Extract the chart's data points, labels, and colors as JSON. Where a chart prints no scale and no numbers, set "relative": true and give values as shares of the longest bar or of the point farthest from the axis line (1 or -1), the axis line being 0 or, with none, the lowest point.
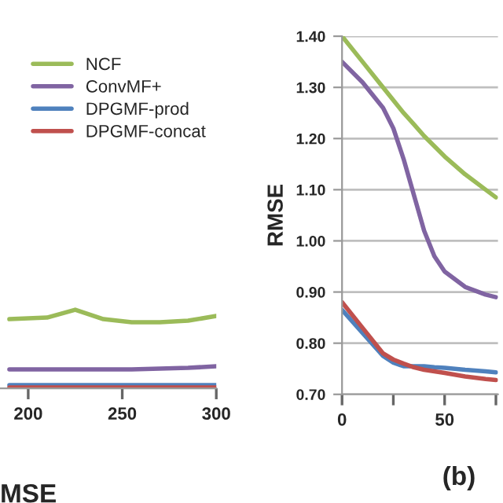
{
  "chart_data": [
    {
      "type": "line",
      "relative": true,
      "x": [
        190,
        210,
        225,
        240,
        255,
        270,
        285,
        300
      ],
      "xlim": [
        185,
        300
      ],
      "xticks": [
        200,
        250,
        300
      ],
      "tick_labels": "x",
      "legend": "top right",
      "annotations": [
        "MSE"
      ],
      "series": [
        {
          "name": "NCF",
          "color": "#9bbb59",
          "values": [
            0.88,
            0.9,
            1,
            0.88,
            0.84,
            0.84,
            0.86,
            0.92
          ]
        },
        {
          "name": "ConvMF+",
          "color": "#8064a2",
          "values": [
            0.24,
            0.24,
            0.24,
            0.24,
            0.24,
            0.25,
            0.26,
            0.28
          ]
        },
        {
          "name": "DPGMF-prod",
          "color": "#4f81bd",
          "values": [
            0.04,
            0.04,
            0.04,
            0.04,
            0.04,
            0.04,
            0.04,
            0.04
          ]
        },
        {
          "name": "DPGMF-concat",
          "color": "#c0504d",
          "values": [
            0.01,
            0.01,
            0.01,
            0.01,
            0.01,
            0.01,
            0.01,
            0.01
          ]
        }
      ]
    },
    {
      "type": "line",
      "x": [
        0,
        10,
        20,
        25,
        30,
        35,
        40,
        45,
        50,
        60,
        70,
        75
      ],
      "xlim": [
        0,
        76
      ],
      "xticks": [
        0,
        {
          "value": 25,
          "label": null
        },
        50,
        {
          "value": 75,
          "label": null
        }
      ],
      "ylim": [
        0.7,
        1.4
      ],
      "yticks": [
        {
          "value": 0.7,
          "label": "0.70"
        },
        {
          "value": 0.8,
          "label": "0.80"
        },
        {
          "value": 0.9,
          "label": "0.90"
        },
        {
          "value": 1.0,
          "label": "1.00"
        },
        {
          "value": 1.1,
          "label": "1.10"
        },
        {
          "value": 1.2,
          "label": "1.20"
        },
        {
          "value": 1.3,
          "label": "1.30"
        },
        {
          "value": 1.4,
          "label": "1.40"
        }
      ],
      "ylabel": "RMSE",
      "grid": "y",
      "annotations": [
        "(b)"
      ],
      "series": [
        {
          "color": "#9bbb59",
          "values": [
            1.4,
            1.35,
            1.3,
            1.275,
            1.25,
            1.228,
            1.205,
            1.185,
            1.165,
            1.13,
            1.1,
            1.085
          ]
        },
        {
          "color": "#8064a2",
          "values": [
            1.35,
            1.31,
            1.26,
            1.22,
            1.16,
            1.09,
            1.02,
            0.97,
            0.94,
            0.91,
            0.895,
            0.89
          ]
        },
        {
          "color": "#4f81bd",
          "values": [
            0.865,
            0.82,
            0.775,
            0.762,
            0.755,
            0.755,
            0.755,
            0.753,
            0.752,
            0.748,
            0.745,
            0.743
          ]
        },
        {
          "color": "#c0504d",
          "values": [
            0.88,
            0.83,
            0.78,
            0.768,
            0.76,
            0.753,
            0.748,
            0.745,
            0.742,
            0.735,
            0.73,
            0.728
          ]
        }
      ]
    }
  ]
}
